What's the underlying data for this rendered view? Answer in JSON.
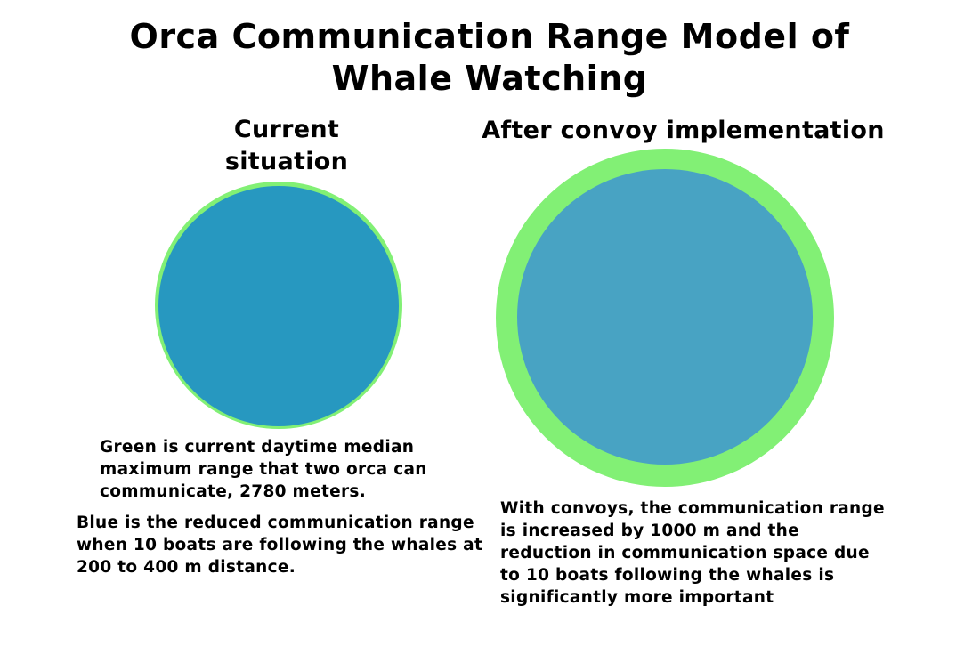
{
  "title": {
    "line1": "Orca Communication Range Model of",
    "line2": "Whale Watching"
  },
  "panels": {
    "current": {
      "heading": "Current situation"
    },
    "convoy": {
      "heading": "After convoy implementation"
    }
  },
  "notes": {
    "green": "Green is current daytime median maximum range that two orca can communicate, 2780 meters.",
    "blue": "Blue is the reduced communication range when 10 boats are following the whales at 200 to 400 m distance.",
    "convoy": "With convoys, the communication range is increased by 1000 m and the reduction in communication space due to 10 boats following the whales is significantly more important"
  },
  "colors": {
    "green_range": "#82f075",
    "blue_current": "#2798c0",
    "blue_convoy": "#48a3c3",
    "background": "#ffffff"
  }
}
